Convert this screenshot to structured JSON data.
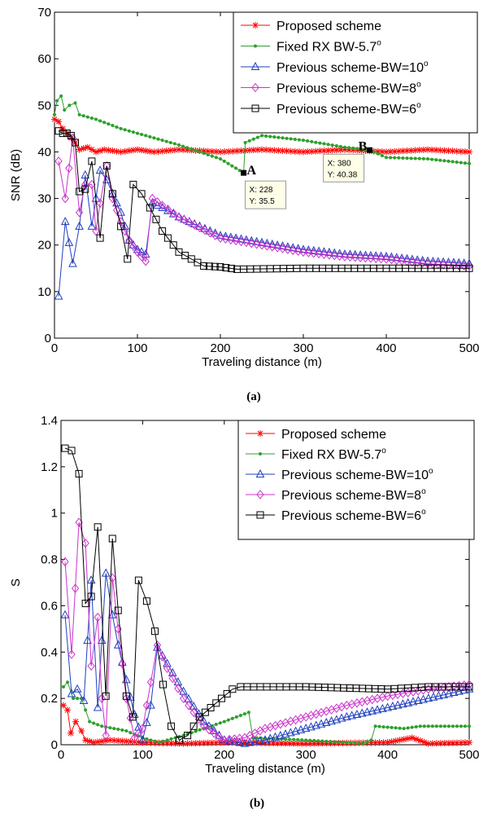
{
  "chart_data": [
    {
      "type": "line",
      "panel_label": "(a)",
      "xlabel": "Traveling distance (m)",
      "ylabel": "SNR (dB)",
      "xlim": [
        0,
        500
      ],
      "ylim": [
        0,
        70
      ],
      "xticks": [
        "0",
        "100",
        "200",
        "300",
        "400",
        "500"
      ],
      "yticks": [
        "0",
        "10",
        "20",
        "30",
        "40",
        "50",
        "60",
        "70"
      ],
      "grid": false,
      "legend_position": "top-right",
      "series": [
        {
          "name": "Proposed scheme",
          "color": "#ff0000",
          "marker": "star",
          "points": [
            [
              0,
              47
            ],
            [
              5,
              46.5
            ],
            [
              10,
              45
            ],
            [
              15,
              44
            ],
            [
              20,
              43
            ],
            [
              25,
              42
            ],
            [
              30,
              40.5
            ],
            [
              40,
              41
            ],
            [
              50,
              40
            ],
            [
              60,
              40.5
            ],
            [
              80,
              40
            ],
            [
              100,
              40.5
            ],
            [
              120,
              40
            ],
            [
              150,
              40.5
            ],
            [
              200,
              40
            ],
            [
              250,
              40.5
            ],
            [
              300,
              40
            ],
            [
              350,
              40.5
            ],
            [
              400,
              40
            ],
            [
              450,
              40.5
            ],
            [
              500,
              40
            ]
          ]
        },
        {
          "name": "Fixed RX BW-5.7",
          "color": "#2ca02c",
          "marker": "dot",
          "points": [
            [
              0,
              48
            ],
            [
              3,
              51
            ],
            [
              8,
              52
            ],
            [
              12,
              49
            ],
            [
              18,
              50
            ],
            [
              25,
              50.5
            ],
            [
              30,
              48
            ],
            [
              50,
              47
            ],
            [
              80,
              45
            ],
            [
              100,
              44
            ],
            [
              150,
              41.5
            ],
            [
              200,
              38.5
            ],
            [
              228,
              35.5
            ],
            [
              230,
              42
            ],
            [
              250,
              43.5
            ],
            [
              300,
              42.5
            ],
            [
              350,
              41
            ],
            [
              380,
              40.38
            ],
            [
              400,
              38.8
            ],
            [
              450,
              38.5
            ],
            [
              500,
              37.5
            ]
          ]
        },
        {
          "name": "Previous scheme-BW=10",
          "color": "#1f3fbf",
          "marker": "triangle",
          "points": [
            [
              5,
              9
            ],
            [
              13,
              25
            ],
            [
              22,
              16
            ],
            [
              30,
              24
            ],
            [
              37,
              35
            ],
            [
              45,
              24
            ],
            [
              55,
              36
            ],
            [
              63,
              34
            ],
            [
              70,
              31
            ],
            [
              80,
              27
            ],
            [
              90,
              21
            ],
            [
              100,
              19
            ],
            [
              110,
              18
            ],
            [
              118,
              29
            ],
            [
              130,
              28
            ],
            [
              150,
              26
            ],
            [
              200,
              22
            ],
            [
              250,
              20.5
            ],
            [
              300,
              19
            ],
            [
              350,
              18
            ],
            [
              400,
              17.5
            ],
            [
              450,
              16.5
            ],
            [
              500,
              16
            ]
          ]
        },
        {
          "name": "Previous scheme-BW=8",
          "color": "#cc33cc",
          "marker": "diamond",
          "points": [
            [
              5,
              38
            ],
            [
              13,
              30
            ],
            [
              22,
              43
            ],
            [
              30,
              27
            ],
            [
              37,
              33
            ],
            [
              45,
              33
            ],
            [
              50,
              23
            ],
            [
              55,
              29
            ],
            [
              63,
              37
            ],
            [
              70,
              30
            ],
            [
              80,
              25
            ],
            [
              90,
              21
            ],
            [
              100,
              18.5
            ],
            [
              110,
              16.5
            ],
            [
              118,
              30
            ],
            [
              130,
              28.5
            ],
            [
              150,
              26
            ],
            [
              200,
              21.5
            ],
            [
              250,
              20
            ],
            [
              300,
              18.5
            ],
            [
              350,
              17.5
            ],
            [
              400,
              17
            ],
            [
              450,
              16
            ],
            [
              500,
              15.5
            ]
          ]
        },
        {
          "name": "Previous scheme-BW=6",
          "color": "#000000",
          "marker": "square",
          "points": [
            [
              5,
              44.5
            ],
            [
              10,
              44
            ],
            [
              15,
              44
            ],
            [
              20,
              43.5
            ],
            [
              25,
              42
            ],
            [
              30,
              31.5
            ],
            [
              37,
              32
            ],
            [
              45,
              38
            ],
            [
              55,
              21.5
            ],
            [
              63,
              37
            ],
            [
              70,
              31
            ],
            [
              80,
              24
            ],
            [
              88,
              17
            ],
            [
              95,
              33
            ],
            [
              105,
              31
            ],
            [
              115,
              28
            ],
            [
              130,
              23
            ],
            [
              150,
              18.5
            ],
            [
              180,
              15.5
            ],
            [
              200,
              15.3
            ],
            [
              220,
              14.8
            ],
            [
              300,
              15
            ],
            [
              400,
              15
            ],
            [
              500,
              15
            ]
          ]
        }
      ],
      "annotations": [
        {
          "label": "A",
          "datatip": [
            "X: 228",
            "Y: 35.5"
          ],
          "x": 228,
          "y": 35.5
        },
        {
          "label": "B",
          "datatip": [
            "X: 380",
            "Y: 40.38"
          ],
          "x": 380,
          "y": 40.38
        }
      ]
    },
    {
      "type": "line",
      "panel_label": "(b)",
      "xlabel": "Traveling distance (m)",
      "ylabel": "S",
      "xlim": [
        0,
        500
      ],
      "ylim": [
        0,
        1.4
      ],
      "xticks": [
        "0",
        "100",
        "200",
        "300",
        "400",
        "500"
      ],
      "yticks": [
        "0",
        "0.2",
        "0.4",
        "0.6",
        "0.8",
        "1",
        "1.2",
        "1.4"
      ],
      "grid": false,
      "legend_position": "top-right",
      "series": [
        {
          "name": "Proposed scheme",
          "color": "#ff0000",
          "marker": "star",
          "points": [
            [
              3,
              0.17
            ],
            [
              8,
              0.15
            ],
            [
              12,
              0.05
            ],
            [
              18,
              0.1
            ],
            [
              25,
              0.06
            ],
            [
              30,
              0.02
            ],
            [
              40,
              0.01
            ],
            [
              60,
              0.02
            ],
            [
              100,
              0.01
            ],
            [
              150,
              0.005
            ],
            [
              200,
              0.01
            ],
            [
              300,
              0.005
            ],
            [
              400,
              0.01
            ],
            [
              430,
              0.03
            ],
            [
              450,
              0.005
            ],
            [
              500,
              0.01
            ]
          ]
        },
        {
          "name": "Fixed RX BW-5.7",
          "color": "#2ca02c",
          "marker": "dot",
          "points": [
            [
              3,
              0.25
            ],
            [
              8,
              0.27
            ],
            [
              15,
              0.2
            ],
            [
              25,
              0.2
            ],
            [
              35,
              0.1
            ],
            [
              50,
              0.08
            ],
            [
              80,
              0.06
            ],
            [
              100,
              0.03
            ],
            [
              120,
              0.01
            ],
            [
              150,
              0.04
            ],
            [
              200,
              0.1
            ],
            [
              230,
              0.14
            ],
            [
              235,
              0.03
            ],
            [
              300,
              0.02
            ],
            [
              370,
              0.005
            ],
            [
              380,
              0.02
            ],
            [
              385,
              0.08
            ],
            [
              420,
              0.07
            ],
            [
              440,
              0.08
            ],
            [
              500,
              0.08
            ]
          ]
        },
        {
          "name": "Previous scheme-BW=10",
          "color": "#1f3fbf",
          "marker": "triangle",
          "points": [
            [
              5,
              0.56
            ],
            [
              13,
              0.22
            ],
            [
              20,
              0.24
            ],
            [
              28,
              0.19
            ],
            [
              37,
              0.71
            ],
            [
              45,
              0.16
            ],
            [
              55,
              0.74
            ],
            [
              63,
              0.56
            ],
            [
              70,
              0.43
            ],
            [
              80,
              0.28
            ],
            [
              90,
              0.13
            ],
            [
              100,
              0.02
            ],
            [
              110,
              0.17
            ],
            [
              118,
              0.42
            ],
            [
              130,
              0.35
            ],
            [
              150,
              0.23
            ],
            [
              175,
              0.1
            ],
            [
              200,
              0.02
            ],
            [
              225,
              0.005
            ],
            [
              250,
              0.02
            ],
            [
              300,
              0.07
            ],
            [
              350,
              0.12
            ],
            [
              400,
              0.16
            ],
            [
              450,
              0.2
            ],
            [
              500,
              0.24
            ]
          ]
        },
        {
          "name": "Previous scheme-BW=8",
          "color": "#cc33cc",
          "marker": "diamond",
          "points": [
            [
              5,
              0.79
            ],
            [
              13,
              0.39
            ],
            [
              22,
              0.96
            ],
            [
              30,
              0.87
            ],
            [
              37,
              0.34
            ],
            [
              45,
              0.55
            ],
            [
              50,
              0.2
            ],
            [
              55,
              0.04
            ],
            [
              63,
              0.72
            ],
            [
              70,
              0.5
            ],
            [
              80,
              0.2
            ],
            [
              90,
              0.03
            ],
            [
              100,
              0.07
            ],
            [
              110,
              0.27
            ],
            [
              118,
              0.43
            ],
            [
              130,
              0.33
            ],
            [
              150,
              0.2
            ],
            [
              175,
              0.08
            ],
            [
              200,
              0.02
            ],
            [
              225,
              0.03
            ],
            [
              250,
              0.07
            ],
            [
              300,
              0.12
            ],
            [
              350,
              0.17
            ],
            [
              400,
              0.21
            ],
            [
              450,
              0.24
            ],
            [
              500,
              0.26
            ]
          ]
        },
        {
          "name": "Previous scheme-BW=6",
          "color": "#000000",
          "marker": "square",
          "points": [
            [
              5,
              1.28
            ],
            [
              13,
              1.27
            ],
            [
              22,
              1.17
            ],
            [
              30,
              0.61
            ],
            [
              37,
              0.64
            ],
            [
              45,
              0.94
            ],
            [
              55,
              0.21
            ],
            [
              63,
              0.89
            ],
            [
              70,
              0.58
            ],
            [
              80,
              0.21
            ],
            [
              88,
              0.12
            ],
            [
              95,
              0.71
            ],
            [
              105,
              0.62
            ],
            [
              115,
              0.49
            ],
            [
              125,
              0.26
            ],
            [
              135,
              0.08
            ],
            [
              145,
              0.02
            ],
            [
              155,
              0.04
            ],
            [
              170,
              0.12
            ],
            [
              190,
              0.18
            ],
            [
              210,
              0.24
            ],
            [
              220,
              0.25
            ],
            [
              300,
              0.25
            ],
            [
              400,
              0.24
            ],
            [
              450,
              0.25
            ],
            [
              500,
              0.25
            ]
          ]
        }
      ]
    }
  ]
}
